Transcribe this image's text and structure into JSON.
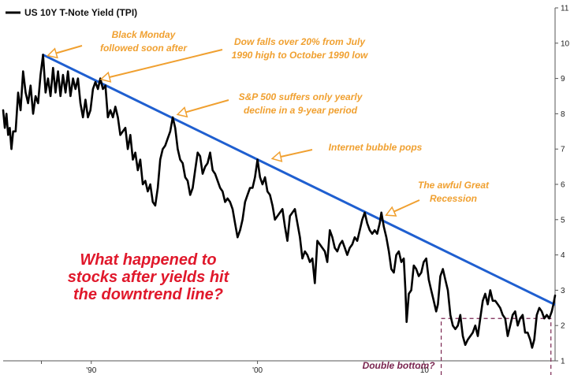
{
  "chart_data": {
    "type": "line",
    "title": "",
    "xlabel": "",
    "ylabel": "",
    "x_domain": [
      1984.7,
      2017.9
    ],
    "ylim": [
      1,
      11
    ],
    "y_ticks": [
      1,
      2,
      3,
      4,
      5,
      6,
      7,
      8,
      9,
      10,
      11
    ],
    "x_ticks": [
      {
        "value": 1987,
        "label": ""
      },
      {
        "value": 1990,
        "label": "'90"
      },
      {
        "value": 2000,
        "label": "'00"
      },
      {
        "value": 2010,
        "label": "'10"
      }
    ],
    "grid": false,
    "legend": {
      "position": "top-left"
    },
    "series": [
      {
        "name": "US 10Y T-Note Yield (TPI)",
        "color": "#000000",
        "points": [
          [
            1984.7,
            8.1
          ],
          [
            1984.8,
            7.6
          ],
          [
            1984.9,
            8.0
          ],
          [
            1985.0,
            7.4
          ],
          [
            1985.1,
            7.6
          ],
          [
            1985.2,
            7.0
          ],
          [
            1985.3,
            7.5
          ],
          [
            1985.45,
            7.5
          ],
          [
            1985.6,
            8.6
          ],
          [
            1985.75,
            8.1
          ],
          [
            1985.9,
            9.2
          ],
          [
            1986.05,
            8.6
          ],
          [
            1986.2,
            8.3
          ],
          [
            1986.35,
            8.8
          ],
          [
            1986.5,
            8.0
          ],
          [
            1986.65,
            8.5
          ],
          [
            1986.8,
            8.3
          ],
          [
            1986.95,
            9.1
          ],
          [
            1987.1,
            9.67
          ],
          [
            1987.25,
            8.6
          ],
          [
            1987.4,
            9.0
          ],
          [
            1987.55,
            8.5
          ],
          [
            1987.7,
            9.3
          ],
          [
            1987.85,
            8.6
          ],
          [
            1988.0,
            9.2
          ],
          [
            1988.15,
            8.5
          ],
          [
            1988.3,
            9.1
          ],
          [
            1988.45,
            8.6
          ],
          [
            1988.6,
            9.2
          ],
          [
            1988.75,
            8.5
          ],
          [
            1988.9,
            9.0
          ],
          [
            1989.05,
            8.7
          ],
          [
            1989.2,
            9.0
          ],
          [
            1989.35,
            8.3
          ],
          [
            1989.5,
            7.9
          ],
          [
            1989.65,
            8.4
          ],
          [
            1989.8,
            7.9
          ],
          [
            1989.95,
            8.1
          ],
          [
            1990.1,
            8.7
          ],
          [
            1990.25,
            8.9
          ],
          [
            1990.4,
            8.7
          ],
          [
            1990.55,
            9.0
          ],
          [
            1990.7,
            8.7
          ],
          [
            1990.85,
            8.8
          ],
          [
            1991.0,
            7.9
          ],
          [
            1991.15,
            8.1
          ],
          [
            1991.3,
            7.9
          ],
          [
            1991.45,
            8.2
          ],
          [
            1991.6,
            7.9
          ],
          [
            1991.75,
            7.4
          ],
          [
            1991.9,
            7.5
          ],
          [
            1992.05,
            7.6
          ],
          [
            1992.2,
            7.0
          ],
          [
            1992.35,
            7.4
          ],
          [
            1992.5,
            6.7
          ],
          [
            1992.65,
            6.9
          ],
          [
            1992.8,
            6.4
          ],
          [
            1992.95,
            6.7
          ],
          [
            1993.1,
            6.0
          ],
          [
            1993.25,
            6.1
          ],
          [
            1993.4,
            5.8
          ],
          [
            1993.55,
            6.0
          ],
          [
            1993.7,
            5.5
          ],
          [
            1993.85,
            5.4
          ],
          [
            1994.0,
            5.9
          ],
          [
            1994.15,
            6.7
          ],
          [
            1994.3,
            7.0
          ],
          [
            1994.45,
            7.1
          ],
          [
            1994.6,
            7.3
          ],
          [
            1994.75,
            7.5
          ],
          [
            1994.9,
            7.9
          ],
          [
            1995.05,
            7.6
          ],
          [
            1995.2,
            7.0
          ],
          [
            1995.35,
            6.7
          ],
          [
            1995.5,
            6.6
          ],
          [
            1995.65,
            6.2
          ],
          [
            1995.8,
            6.1
          ],
          [
            1995.95,
            5.7
          ],
          [
            1996.1,
            5.9
          ],
          [
            1996.25,
            6.4
          ],
          [
            1996.4,
            6.9
          ],
          [
            1996.55,
            6.8
          ],
          [
            1996.7,
            6.3
          ],
          [
            1996.85,
            6.5
          ],
          [
            1997.0,
            6.6
          ],
          [
            1997.15,
            6.9
          ],
          [
            1997.3,
            6.4
          ],
          [
            1997.45,
            6.3
          ],
          [
            1997.6,
            6.1
          ],
          [
            1997.75,
            5.9
          ],
          [
            1997.9,
            5.8
          ],
          [
            1998.05,
            5.5
          ],
          [
            1998.2,
            5.6
          ],
          [
            1998.35,
            5.5
          ],
          [
            1998.5,
            5.3
          ],
          [
            1998.65,
            4.9
          ],
          [
            1998.8,
            4.5
          ],
          [
            1998.95,
            4.7
          ],
          [
            1999.1,
            5.0
          ],
          [
            1999.25,
            5.5
          ],
          [
            1999.4,
            5.7
          ],
          [
            1999.55,
            5.9
          ],
          [
            1999.7,
            5.9
          ],
          [
            1999.85,
            6.2
          ],
          [
            2000.0,
            6.7
          ],
          [
            2000.15,
            6.2
          ],
          [
            2000.3,
            6.0
          ],
          [
            2000.45,
            6.2
          ],
          [
            2000.6,
            5.8
          ],
          [
            2000.75,
            5.7
          ],
          [
            2000.9,
            5.4
          ],
          [
            2001.05,
            5.0
          ],
          [
            2001.2,
            5.1
          ],
          [
            2001.35,
            5.2
          ],
          [
            2001.5,
            5.3
          ],
          [
            2001.65,
            4.8
          ],
          [
            2001.8,
            4.4
          ],
          [
            2001.95,
            5.1
          ],
          [
            2002.1,
            5.2
          ],
          [
            2002.25,
            5.3
          ],
          [
            2002.4,
            4.9
          ],
          [
            2002.55,
            4.5
          ],
          [
            2002.7,
            3.9
          ],
          [
            2002.85,
            4.1
          ],
          [
            2003.0,
            4.0
          ],
          [
            2003.15,
            3.8
          ],
          [
            2003.3,
            3.9
          ],
          [
            2003.45,
            3.2
          ],
          [
            2003.6,
            4.4
          ],
          [
            2003.75,
            4.3
          ],
          [
            2003.9,
            4.2
          ],
          [
            2004.05,
            4.1
          ],
          [
            2004.2,
            3.8
          ],
          [
            2004.35,
            4.7
          ],
          [
            2004.5,
            4.5
          ],
          [
            2004.65,
            4.2
          ],
          [
            2004.8,
            4.1
          ],
          [
            2004.95,
            4.3
          ],
          [
            2005.1,
            4.4
          ],
          [
            2005.25,
            4.2
          ],
          [
            2005.4,
            4.0
          ],
          [
            2005.55,
            4.2
          ],
          [
            2005.7,
            4.3
          ],
          [
            2005.85,
            4.5
          ],
          [
            2006.0,
            4.4
          ],
          [
            2006.15,
            4.7
          ],
          [
            2006.3,
            5.0
          ],
          [
            2006.45,
            5.2
          ],
          [
            2006.6,
            4.9
          ],
          [
            2006.75,
            4.7
          ],
          [
            2006.9,
            4.6
          ],
          [
            2007.05,
            4.7
          ],
          [
            2007.2,
            4.6
          ],
          [
            2007.35,
            4.9
          ],
          [
            2007.45,
            5.2
          ],
          [
            2007.6,
            4.8
          ],
          [
            2007.75,
            4.5
          ],
          [
            2007.9,
            4.1
          ],
          [
            2008.05,
            3.6
          ],
          [
            2008.2,
            3.5
          ],
          [
            2008.35,
            4.0
          ],
          [
            2008.5,
            4.1
          ],
          [
            2008.65,
            3.8
          ],
          [
            2008.8,
            3.9
          ],
          [
            2008.9,
            3.0
          ],
          [
            2008.97,
            2.1
          ],
          [
            2009.1,
            2.9
          ],
          [
            2009.25,
            3.0
          ],
          [
            2009.4,
            3.7
          ],
          [
            2009.55,
            3.6
          ],
          [
            2009.7,
            3.4
          ],
          [
            2009.85,
            3.5
          ],
          [
            2010.0,
            3.8
          ],
          [
            2010.15,
            3.9
          ],
          [
            2010.3,
            3.3
          ],
          [
            2010.45,
            3.0
          ],
          [
            2010.6,
            2.7
          ],
          [
            2010.75,
            2.4
          ],
          [
            2010.85,
            2.6
          ],
          [
            2011.0,
            3.4
          ],
          [
            2011.15,
            3.6
          ],
          [
            2011.3,
            3.3
          ],
          [
            2011.45,
            3.0
          ],
          [
            2011.6,
            2.3
          ],
          [
            2011.75,
            2.0
          ],
          [
            2011.9,
            1.9
          ],
          [
            2012.05,
            2.0
          ],
          [
            2012.2,
            2.3
          ],
          [
            2012.35,
            1.7
          ],
          [
            2012.5,
            1.45
          ],
          [
            2012.65,
            1.6
          ],
          [
            2012.8,
            1.7
          ],
          [
            2012.95,
            1.8
          ],
          [
            2013.1,
            2.0
          ],
          [
            2013.25,
            1.7
          ],
          [
            2013.4,
            2.2
          ],
          [
            2013.55,
            2.7
          ],
          [
            2013.7,
            2.9
          ],
          [
            2013.85,
            2.6
          ],
          [
            2014.0,
            3.0
          ],
          [
            2014.15,
            2.7
          ],
          [
            2014.3,
            2.7
          ],
          [
            2014.45,
            2.6
          ],
          [
            2014.6,
            2.5
          ],
          [
            2014.75,
            2.3
          ],
          [
            2014.9,
            2.2
          ],
          [
            2015.05,
            1.7
          ],
          [
            2015.2,
            2.0
          ],
          [
            2015.35,
            2.3
          ],
          [
            2015.5,
            2.4
          ],
          [
            2015.65,
            2.0
          ],
          [
            2015.8,
            2.2
          ],
          [
            2015.95,
            2.3
          ],
          [
            2016.1,
            1.8
          ],
          [
            2016.25,
            1.8
          ],
          [
            2016.4,
            1.6
          ],
          [
            2016.52,
            1.37
          ],
          [
            2016.65,
            1.6
          ],
          [
            2016.8,
            2.3
          ],
          [
            2016.95,
            2.5
          ],
          [
            2017.1,
            2.4
          ],
          [
            2017.25,
            2.2
          ],
          [
            2017.4,
            2.3
          ],
          [
            2017.55,
            2.2
          ],
          [
            2017.7,
            2.4
          ],
          [
            2017.8,
            2.6
          ],
          [
            2017.9,
            2.85
          ]
        ]
      }
    ],
    "trendline": {
      "color": "#1f5fd0",
      "from": [
        1987.1,
        9.67
      ],
      "to": [
        2017.85,
        2.6
      ]
    },
    "annotations": [
      {
        "lines": [
          "Black Monday",
          "followed soon after"
        ],
        "target": [
          1987.1,
          9.67
        ]
      },
      {
        "lines": [
          "Dow falls over 20% from July",
          "1990 high to October 1990 low"
        ],
        "target": [
          1990.3,
          9.0
        ]
      },
      {
        "lines": [
          "S&P 500 suffers only yearly",
          "decline in a 9-year period"
        ],
        "target": [
          1994.9,
          8.0
        ]
      },
      {
        "lines": [
          "Internet bubble pops"
        ],
        "target": [
          2000.6,
          6.75
        ]
      },
      {
        "lines": [
          "The awful Great",
          "Recession"
        ],
        "target": [
          2007.45,
          5.15
        ]
      }
    ],
    "question": [
      "What happened to",
      "stocks after yields hit",
      "the downtrend line?"
    ],
    "highlight": {
      "label": "Double bottom?",
      "x_range": [
        2011.05,
        2017.65
      ],
      "y_range": [
        1.2,
        2.2
      ],
      "color": "#7a2550"
    }
  }
}
